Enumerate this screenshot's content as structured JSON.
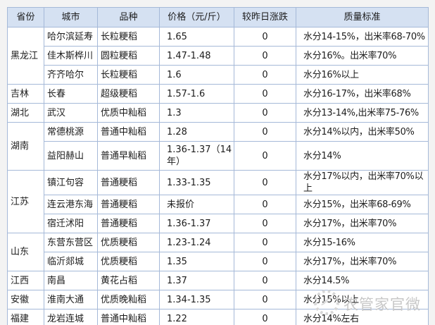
{
  "chart_data": {
    "type": "table",
    "columns": [
      "省份",
      "城市",
      "品种",
      "价格（元/斤）",
      "较昨日涨跌",
      "质量标准"
    ],
    "groups": [
      {
        "province": "黑龙江",
        "rows": [
          {
            "city": "哈尔滨延寿",
            "variety": "长粒粳稻",
            "price": "1.65",
            "change": "0",
            "quality": "水分14-15%，出米率68-70%"
          },
          {
            "city": "佳木斯桦川",
            "variety": "圆粒粳稻",
            "price": "1.47-1.48",
            "change": "0",
            "quality": "水分16%。出米率70%"
          },
          {
            "city": "齐齐哈尔",
            "variety": "长粒粳稻",
            "price": "1.6",
            "change": "0",
            "quality": "水分16%以上"
          }
        ]
      },
      {
        "province": "吉林",
        "rows": [
          {
            "city": "长春",
            "variety": "超级粳稻",
            "price": "1.57-1.6",
            "change": "0",
            "quality": "水分16-17%，出米率68%"
          }
        ]
      },
      {
        "province": "湖北",
        "rows": [
          {
            "city": "武汉",
            "variety": "优质中籼稻",
            "price": "1.3",
            "change": "0",
            "quality": "水分13-14%,出米率75-76%"
          }
        ]
      },
      {
        "province": "湖南",
        "rows": [
          {
            "city": "常德桃源",
            "variety": "普通中籼稻",
            "price": "1.28",
            "change": "0",
            "quality": "水分14%以内，出米率50%"
          },
          {
            "city": "益阳赫山",
            "variety": "普通早籼稻",
            "price": "1.36-1.37（14年）",
            "change": "0",
            "quality": "水分14%",
            "tall": true
          }
        ]
      },
      {
        "province": "江苏",
        "rows": [
          {
            "city": "镇江句容",
            "variety": "普通粳稻",
            "price": "1.33-1.35",
            "change": "0",
            "quality": "水分17%以内，出米率70%以上"
          },
          {
            "city": "连云港东海",
            "variety": "普通粳稻",
            "price": "未报价",
            "change": "0",
            "quality": "水分15%，出米率68-69%"
          },
          {
            "city": "宿迁沭阳",
            "variety": "普通粳稻",
            "price": "1.36-1.37",
            "change": "0",
            "quality": "水分17%，出米率70%"
          }
        ]
      },
      {
        "province": "山东",
        "rows": [
          {
            "city": "东营东营区",
            "variety": "优质粳稻",
            "price": "1.23-1.24",
            "change": "0",
            "quality": "水分15-16%"
          },
          {
            "city": "临沂郯城",
            "variety": "优质粳稻",
            "price": "1.35",
            "change": "0",
            "quality": "水分17%，出米率70%"
          }
        ]
      },
      {
        "province": "江西",
        "rows": [
          {
            "city": "南昌",
            "variety": "黄花占稻",
            "price": "1.37",
            "change": "0",
            "quality": "水分14.5%"
          }
        ]
      },
      {
        "province": "安徽",
        "rows": [
          {
            "city": "淮南大通",
            "variety": "优质晚籼稻",
            "price": "1.34-1.35",
            "change": "0",
            "quality": "水分15%以上"
          }
        ]
      },
      {
        "province": "福建",
        "rows": [
          {
            "city": "龙岩连城",
            "variety": "普通中籼稻",
            "price": "1.22",
            "change": "0",
            "quality": "水分14%左右"
          }
        ]
      }
    ]
  },
  "watermark": {
    "text": "农管家官微",
    "logo": "sun-ring-logo-icon"
  },
  "colors": {
    "page_background": "#f3f3f3",
    "header_background": "#d5e1f2",
    "table_border": "#a5b9d8",
    "cell_background": "#ffffff",
    "text": "#1c1c1c",
    "watermark": "#c8c8c8"
  }
}
